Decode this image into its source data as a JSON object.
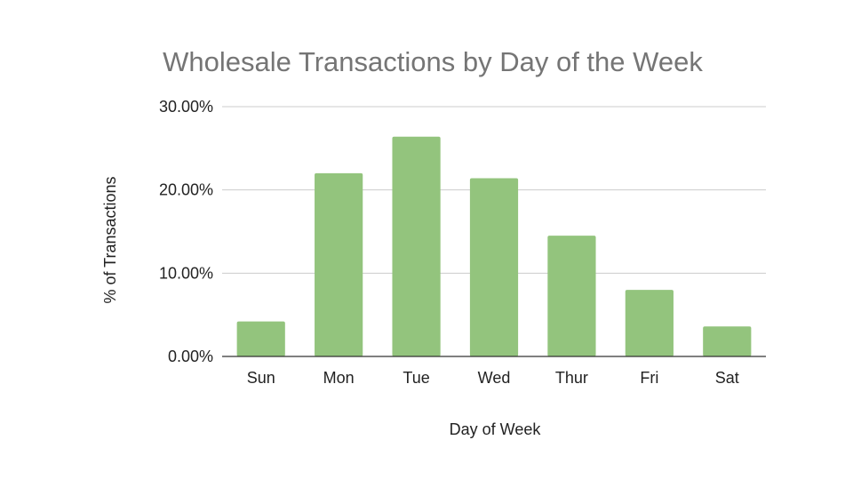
{
  "chart_data": {
    "type": "bar",
    "title": "Wholesale Transactions by Day of the Week",
    "xlabel": "Day of Week",
    "ylabel": "% of Transactions",
    "categories": [
      "Sun",
      "Mon",
      "Tue",
      "Wed",
      "Thur",
      "Fri",
      "Sat"
    ],
    "values": [
      4.2,
      22.0,
      26.4,
      21.4,
      14.5,
      8.0,
      3.6
    ],
    "ylim": [
      0,
      30
    ],
    "yticks": [
      0,
      10,
      20,
      30
    ],
    "ytick_labels": [
      "0.00%",
      "10.00%",
      "20.00%",
      "30.00%"
    ],
    "grid": true,
    "legend": "none",
    "colors": {
      "bar": "#93c47d",
      "title": "#757575",
      "text": "#222222",
      "grid": "#cccccc",
      "baseline": "#333333"
    }
  }
}
